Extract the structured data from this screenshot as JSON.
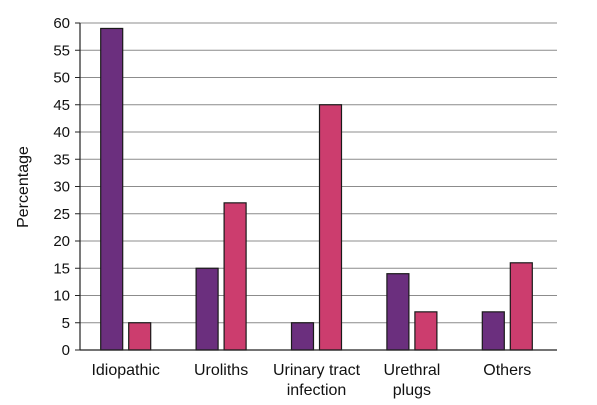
{
  "chart_data": {
    "type": "bar",
    "title": "",
    "xlabel": "",
    "ylabel": "Percentage",
    "ylim": [
      0,
      60
    ],
    "yticks": [
      0,
      5,
      10,
      15,
      20,
      25,
      30,
      35,
      40,
      45,
      50,
      55,
      60
    ],
    "grid": true,
    "categories": [
      [
        "Idiopathic"
      ],
      [
        "Uroliths"
      ],
      [
        "Urinary tract",
        "infection"
      ],
      [
        "Urethral",
        "plugs"
      ],
      [
        "Others"
      ]
    ],
    "series": [
      {
        "values": [
          59,
          15,
          5,
          14,
          7
        ],
        "color": "#6b2f7e"
      },
      {
        "values": [
          5,
          27,
          45,
          7,
          16
        ],
        "color": "#cc3d6e"
      }
    ]
  }
}
